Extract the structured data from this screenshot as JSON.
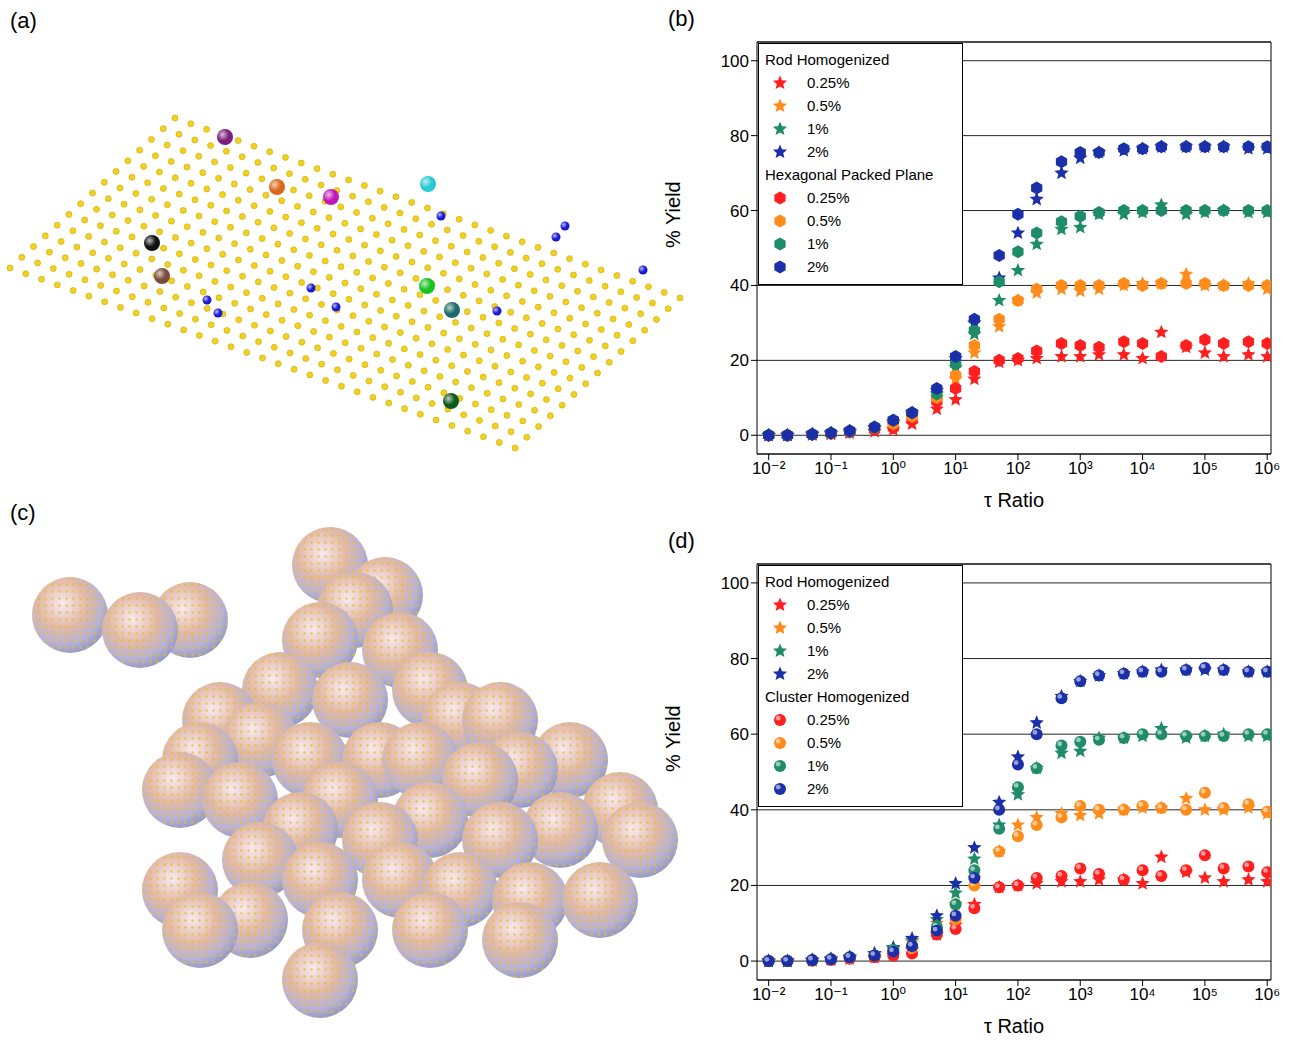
{
  "images": [
    {
      "label": "(a)"
    },
    {
      "label": "(c)"
    }
  ],
  "chart_data": [
    {
      "label": "(b)",
      "type": "scatter",
      "xlabel": "τ Ratio",
      "ylabel": "% Yield",
      "log": "x",
      "grid": true,
      "legend": "upper left",
      "x": [
        0.01,
        0.02,
        0.05,
        0.1,
        0.2,
        0.5,
        1,
        2,
        5,
        10,
        20,
        50,
        100,
        200,
        500,
        1000,
        2000,
        5000,
        10000,
        20000,
        50000,
        100000,
        200000,
        500000,
        1000000
      ],
      "xlim": [
        0.0065,
        1150000
      ],
      "xticks": [
        {
          "value": 0.01,
          "label": "10⁻²"
        },
        {
          "value": 0.1,
          "label": "10⁻¹"
        },
        {
          "value": 1,
          "label": "10⁰"
        },
        {
          "value": 10,
          "label": "10¹"
        },
        {
          "value": 100,
          "label": "10²"
        },
        {
          "value": 1000,
          "label": "10³"
        },
        {
          "value": 10000,
          "label": "10⁴"
        },
        {
          "value": 100000,
          "label": "10⁵"
        },
        {
          "value": 1000000,
          "label": "10⁶"
        }
      ],
      "ylim": [
        -5,
        105
      ],
      "yticks": [
        0,
        20,
        40,
        60,
        80,
        100
      ],
      "series": [
        {
          "name": "0.25%",
          "group": "Rod Homogenized",
          "color": "#ff1f1f",
          "marker": "star",
          "values": [
            0,
            0,
            0.1,
            0.3,
            0.6,
            1,
            1.5,
            3,
            7,
            9.5,
            15,
            19.5,
            20,
            20.5,
            21,
            21,
            21.5,
            21.5,
            20.5,
            27.5,
            23.5,
            22,
            21,
            21.5,
            21
          ]
        },
        {
          "name": "0.5%",
          "group": "Rod Homogenized",
          "color": "#ff8c1a",
          "marker": "star",
          "values": [
            0,
            0,
            0.2,
            0.5,
            0.9,
            1.8,
            3,
            5,
            10,
            15,
            22,
            29,
            36,
            38,
            39,
            38.5,
            39,
            40,
            40.5,
            40.5,
            43,
            40,
            40,
            40.5,
            39
          ]
        },
        {
          "name": "1%",
          "group": "Rod Homogenized",
          "color": "#1e8c68",
          "marker": "star",
          "values": [
            0,
            0,
            0.3,
            0.5,
            1,
            2,
            3.5,
            5.5,
            11,
            18,
            27,
            36,
            44,
            51,
            55,
            55.5,
            59,
            59,
            59.5,
            61.5,
            59,
            59.5,
            60,
            59.5,
            59.5
          ]
        },
        {
          "name": "2%",
          "group": "Rod Homogenized",
          "color": "#1a2fa8",
          "marker": "star",
          "values": [
            0,
            0,
            0.3,
            0.6,
            1.1,
            2,
            3.5,
            6,
            12,
            20.5,
            30,
            42,
            54,
            63,
            70,
            74,
            75.5,
            76,
            76.5,
            77,
            77,
            77,
            77,
            76.5,
            76.5
          ]
        },
        {
          "name": "0.25%",
          "group": "Hexagonal Packed Plane",
          "color": "#ff1f1f",
          "marker": "hexagon",
          "values": [
            0,
            0,
            0.2,
            0.4,
            0.8,
            1.5,
            2,
            4,
            9,
            12.5,
            17,
            20,
            20.5,
            22.5,
            24.5,
            24,
            23.5,
            25,
            24.5,
            21,
            24,
            25.5,
            24.5,
            25,
            24.5
          ]
        },
        {
          "name": "0.5%",
          "group": "Hexagonal Packed Plane",
          "color": "#ff8c1a",
          "marker": "hexagon",
          "values": [
            0,
            0,
            0.2,
            0.5,
            1,
            2,
            3,
            5,
            10,
            16,
            24,
            31,
            36,
            39,
            40,
            40,
            40,
            40.5,
            40,
            40.5,
            40.5,
            40.5,
            40,
            40,
            40
          ]
        },
        {
          "name": "1%",
          "group": "Hexagonal Packed Plane",
          "color": "#1e8c68",
          "marker": "hexagon",
          "values": [
            0,
            0,
            0.3,
            0.6,
            1,
            2,
            4,
            6,
            11,
            19,
            28,
            41,
            49,
            54,
            57,
            58.5,
            59.5,
            60,
            60,
            60,
            60,
            60,
            60,
            60,
            60
          ]
        },
        {
          "name": "2%",
          "group": "Hexagonal Packed Plane",
          "color": "#1a2fa8",
          "marker": "hexagon",
          "values": [
            0,
            0,
            0.3,
            0.6,
            1.2,
            2.2,
            4,
            6,
            12.5,
            21,
            31,
            48,
            59,
            66,
            73,
            75.5,
            75.5,
            76.5,
            76.5,
            77,
            77,
            77,
            77,
            77,
            77
          ]
        }
      ]
    },
    {
      "label": "(d)",
      "type": "scatter",
      "xlabel": "τ Ratio",
      "ylabel": "% Yield",
      "log": "x",
      "grid": true,
      "legend": "upper left",
      "x": [
        0.01,
        0.02,
        0.05,
        0.1,
        0.2,
        0.5,
        1,
        2,
        5,
        10,
        20,
        50,
        100,
        200,
        500,
        1000,
        2000,
        5000,
        10000,
        20000,
        50000,
        100000,
        200000,
        500000,
        1000000
      ],
      "xlim": [
        0.0065,
        1150000
      ],
      "xticks": [
        {
          "value": 0.01,
          "label": "10⁻²"
        },
        {
          "value": 0.1,
          "label": "10⁻¹"
        },
        {
          "value": 1,
          "label": "10⁰"
        },
        {
          "value": 10,
          "label": "10¹"
        },
        {
          "value": 100,
          "label": "10²"
        },
        {
          "value": 1000,
          "label": "10³"
        },
        {
          "value": 10000,
          "label": "10⁴"
        },
        {
          "value": 100000,
          "label": "10⁵"
        },
        {
          "value": 1000000,
          "label": "10⁶"
        }
      ],
      "ylim": [
        -5,
        105
      ],
      "yticks": [
        0,
        20,
        40,
        60,
        80,
        100
      ],
      "series": [
        {
          "name": "0.25%",
          "group": "Rod Homogenized",
          "color": "#ff1f1f",
          "marker": "star",
          "values": [
            0,
            0,
            0.1,
            0.3,
            0.6,
            1,
            1.5,
            3,
            7,
            9.5,
            15,
            19.5,
            20,
            20.5,
            21,
            21,
            21.5,
            21.5,
            20.5,
            27.5,
            23.5,
            22,
            21,
            21.5,
            21
          ]
        },
        {
          "name": "0.5%",
          "group": "Rod Homogenized",
          "color": "#ff8c1a",
          "marker": "star",
          "values": [
            0,
            0,
            0.2,
            0.5,
            0.9,
            1.8,
            3,
            5,
            10,
            15,
            22,
            29,
            36,
            38,
            39,
            38.5,
            39,
            40,
            40.5,
            40.5,
            43,
            40,
            40,
            40.5,
            39
          ]
        },
        {
          "name": "1%",
          "group": "Rod Homogenized",
          "color": "#1e8c68",
          "marker": "star",
          "values": [
            0,
            0,
            0.3,
            0.5,
            1,
            2,
            3.5,
            5.5,
            11,
            18,
            27,
            36,
            44,
            51,
            55,
            55.5,
            59,
            59,
            59.5,
            61.5,
            59,
            59.5,
            60,
            59.5,
            59.5
          ]
        },
        {
          "name": "2%",
          "group": "Rod Homogenized",
          "color": "#1a2fa8",
          "marker": "star",
          "values": [
            0,
            0,
            0.3,
            0.6,
            1.1,
            2,
            3.5,
            6,
            12,
            20.5,
            30,
            42,
            54,
            63,
            70,
            74,
            75.5,
            76,
            76.5,
            77,
            77,
            77,
            77,
            76.5,
            76.5
          ]
        },
        {
          "name": "0.25%",
          "group": "Cluster Homogenized",
          "color": "#ff1f1f",
          "marker": "sphere",
          "values": [
            0,
            0,
            0.1,
            0.3,
            0.6,
            1,
            1.5,
            2,
            7,
            8.5,
            14,
            19.5,
            20,
            22,
            22.5,
            24.5,
            23,
            21.5,
            24,
            22.5,
            24,
            28,
            24.5,
            25,
            23.5
          ]
        },
        {
          "name": "0.5%",
          "group": "Cluster Homogenized",
          "color": "#ff8c1a",
          "marker": "sphere",
          "values": [
            0,
            0,
            0.2,
            0.4,
            0.9,
            1.5,
            2.5,
            3.5,
            8,
            11,
            20,
            29,
            33,
            36,
            38,
            41,
            40,
            40,
            41,
            40.5,
            40,
            44.5,
            40.5,
            41.5,
            39.5
          ]
        },
        {
          "name": "1%",
          "group": "Cluster Homogenized",
          "color": "#1e8c68",
          "marker": "sphere",
          "values": [
            0,
            0,
            0.2,
            0.5,
            1,
            1.5,
            3,
            4,
            9,
            15,
            24,
            35,
            46,
            51,
            57,
            58,
            58.5,
            59,
            60,
            60,
            59.5,
            59.5,
            59.5,
            60,
            60
          ]
        },
        {
          "name": "2%",
          "group": "Cluster Homogenized",
          "color": "#1a2fa8",
          "marker": "sphere",
          "values": [
            0,
            0,
            0.3,
            0.5,
            1,
            1.5,
            2.5,
            4,
            8,
            12,
            22,
            40,
            52,
            60,
            69.5,
            74,
            75.5,
            76,
            76.5,
            76.5,
            77,
            77.5,
            77,
            76.5,
            76.5
          ]
        }
      ]
    }
  ]
}
